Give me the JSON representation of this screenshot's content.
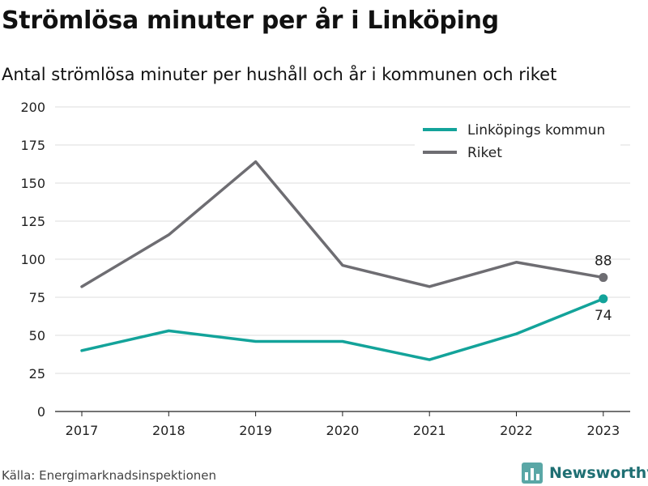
{
  "header": {
    "title": "Strömlösa minuter per år i Linköping",
    "subtitle": "Antal strömlösa minuter per hushåll och år i kommunen och riket"
  },
  "footer": {
    "source": "Källa: Energimarknadsinspektionen",
    "brand": "Newsworthy",
    "brand_icon": "bar-chart-logo-icon"
  },
  "chart_data": {
    "type": "line",
    "title": "Strömlösa minuter per år i Linköping",
    "subtitle": "Antal strömlösa minuter per hushåll och år i kommunen och riket",
    "xlabel": "",
    "ylabel": "",
    "x": [
      "2017",
      "2018",
      "2019",
      "2020",
      "2021",
      "2022",
      "2023"
    ],
    "ylim": [
      0,
      200
    ],
    "yticks": [
      "0",
      "25",
      "50",
      "75",
      "100",
      "125",
      "150",
      "175",
      "200"
    ],
    "grid": true,
    "legend_position": "top-right",
    "series": [
      {
        "name": "Linköpings kommun",
        "color": "#13a39a",
        "values": [
          40,
          53,
          46,
          46,
          34,
          51,
          74
        ],
        "end_label": "74"
      },
      {
        "name": "Riket",
        "color": "#6e6d72",
        "values": [
          82,
          116,
          164,
          96,
          82,
          98,
          88
        ],
        "end_label": "88"
      }
    ]
  }
}
